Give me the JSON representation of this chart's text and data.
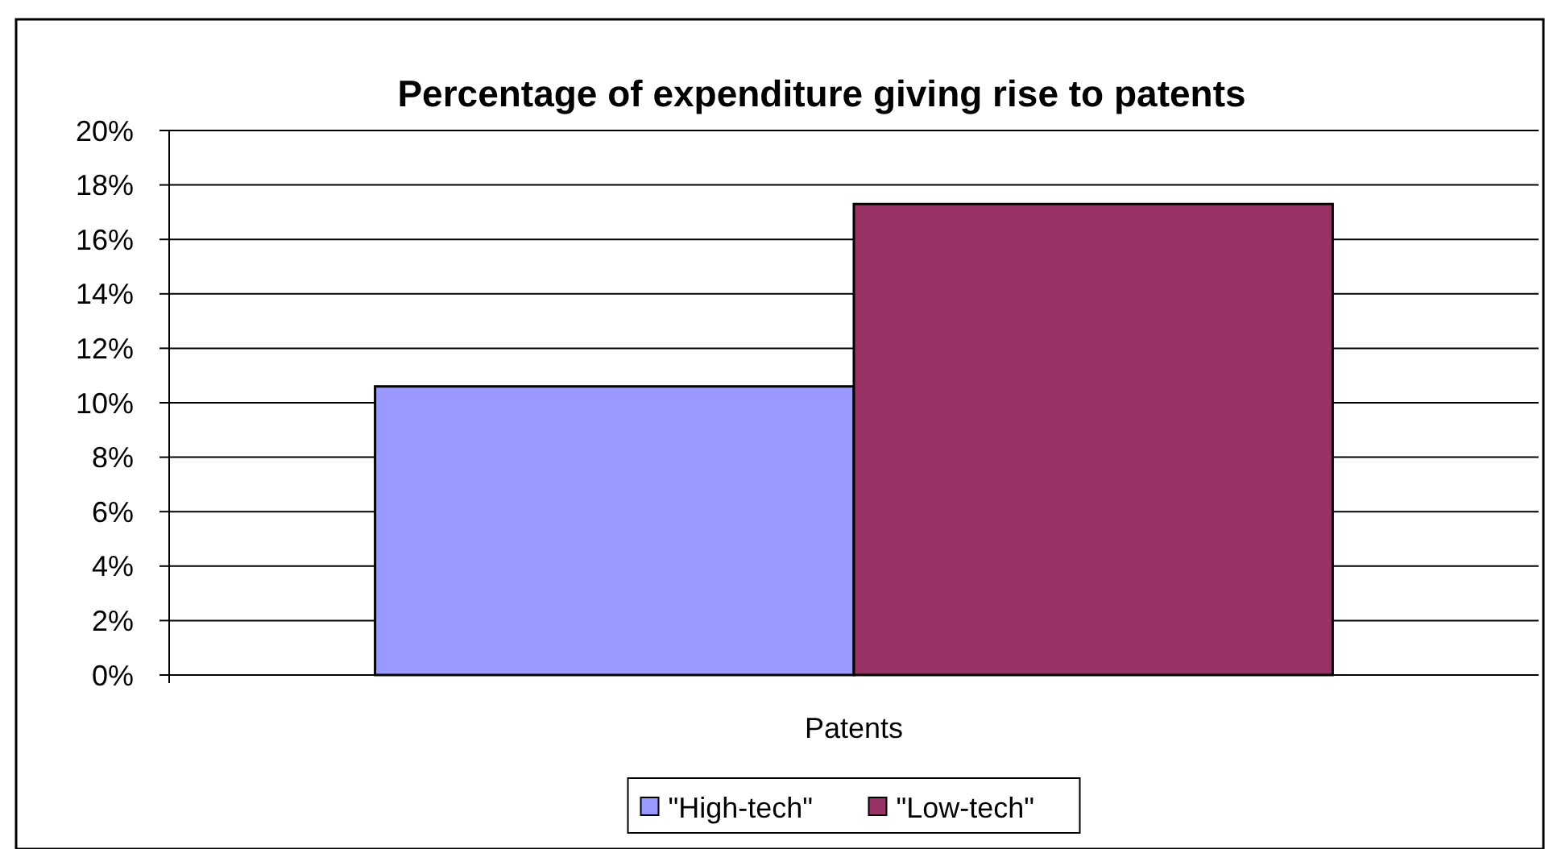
{
  "chart_data": {
    "type": "bar",
    "title": "Percentage of expenditure giving rise to patents",
    "categories": [
      "Patents"
    ],
    "series": [
      {
        "name": "\"High-tech\"",
        "color": "#9999ff",
        "values": [
          10.6
        ]
      },
      {
        "name": "\"Low-tech\"",
        "color": "#993366",
        "values": [
          17.3
        ]
      }
    ],
    "ylim": [
      0,
      20
    ],
    "yticks": [
      {
        "value": 0,
        "label": "0%"
      },
      {
        "value": 2,
        "label": "2%"
      },
      {
        "value": 4,
        "label": "4%"
      },
      {
        "value": 6,
        "label": "6%"
      },
      {
        "value": 8,
        "label": "8%"
      },
      {
        "value": 10,
        "label": "10%"
      },
      {
        "value": 12,
        "label": "12%"
      },
      {
        "value": 14,
        "label": "14%"
      },
      {
        "value": 16,
        "label": "16%"
      },
      {
        "value": 18,
        "label": "18%"
      },
      {
        "value": 20,
        "label": "20%"
      }
    ],
    "grid": "y",
    "legend": "bottom"
  }
}
